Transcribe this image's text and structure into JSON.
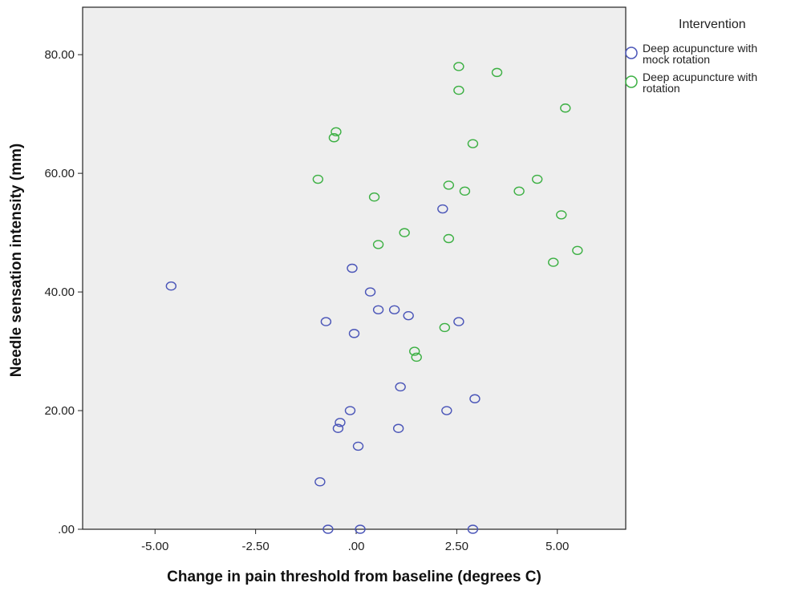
{
  "chart_data": {
    "type": "scatter",
    "title": "",
    "xlabel": "Change in pain threshold from baseline (degrees C)",
    "ylabel": "Needle sensation intensity (mm)",
    "xlim": [
      -6.8,
      6.7
    ],
    "ylim": [
      0,
      88
    ],
    "x_ticks": [
      {
        "value": -5,
        "label": "-5.00"
      },
      {
        "value": -2.5,
        "label": "-2.50"
      },
      {
        "value": 0,
        "label": ".00"
      },
      {
        "value": 2.5,
        "label": "2.50"
      },
      {
        "value": 5,
        "label": "5.00"
      }
    ],
    "y_ticks": [
      {
        "value": 0,
        "label": ".00"
      },
      {
        "value": 20,
        "label": "20.00"
      },
      {
        "value": 40,
        "label": "40.00"
      },
      {
        "value": 60,
        "label": "60.00"
      },
      {
        "value": 80,
        "label": "80.00"
      }
    ],
    "grid": false,
    "plot_background": "#eeeeee",
    "legend": {
      "title": "Intervention",
      "placement": "right"
    },
    "series": [
      {
        "name": "Deep acupuncture with mock rotation",
        "legend_lines": [
          "Deep acupuncture with",
          "mock rotation"
        ],
        "color": "#4a55b8",
        "marker": "open-circle",
        "points": [
          {
            "x": -4.6,
            "y": 41
          },
          {
            "x": -0.1,
            "y": 44
          },
          {
            "x": 0.35,
            "y": 40
          },
          {
            "x": 0.55,
            "y": 37
          },
          {
            "x": 0.95,
            "y": 37
          },
          {
            "x": 1.3,
            "y": 36
          },
          {
            "x": -0.75,
            "y": 35
          },
          {
            "x": -0.05,
            "y": 33
          },
          {
            "x": 2.55,
            "y": 35
          },
          {
            "x": 2.15,
            "y": 54
          },
          {
            "x": 1.1,
            "y": 24
          },
          {
            "x": 2.95,
            "y": 22
          },
          {
            "x": -0.15,
            "y": 20
          },
          {
            "x": 2.25,
            "y": 20
          },
          {
            "x": -0.4,
            "y": 18
          },
          {
            "x": -0.45,
            "y": 17
          },
          {
            "x": 1.05,
            "y": 17
          },
          {
            "x": 0.05,
            "y": 14
          },
          {
            "x": -0.9,
            "y": 8
          },
          {
            "x": -0.7,
            "y": 0
          },
          {
            "x": 0.1,
            "y": 0
          },
          {
            "x": 2.9,
            "y": 0
          }
        ]
      },
      {
        "name": "Deep acupuncture with rotation",
        "legend_lines": [
          "Deep acupuncture with",
          "rotation"
        ],
        "color": "#3cb043",
        "marker": "open-circle",
        "points": [
          {
            "x": 2.55,
            "y": 78
          },
          {
            "x": 3.5,
            "y": 77
          },
          {
            "x": 2.55,
            "y": 74
          },
          {
            "x": 5.2,
            "y": 71
          },
          {
            "x": -0.5,
            "y": 67
          },
          {
            "x": -0.55,
            "y": 66
          },
          {
            "x": 2.9,
            "y": 65
          },
          {
            "x": -0.95,
            "y": 59
          },
          {
            "x": 4.5,
            "y": 59
          },
          {
            "x": 2.3,
            "y": 58
          },
          {
            "x": 2.7,
            "y": 57
          },
          {
            "x": 4.05,
            "y": 57
          },
          {
            "x": 0.45,
            "y": 56
          },
          {
            "x": 5.1,
            "y": 53
          },
          {
            "x": 1.2,
            "y": 50
          },
          {
            "x": 2.3,
            "y": 49
          },
          {
            "x": 0.55,
            "y": 48
          },
          {
            "x": 5.5,
            "y": 47
          },
          {
            "x": 4.9,
            "y": 45
          },
          {
            "x": 2.2,
            "y": 34
          },
          {
            "x": 1.45,
            "y": 30
          },
          {
            "x": 1.5,
            "y": 29
          }
        ]
      }
    ]
  }
}
